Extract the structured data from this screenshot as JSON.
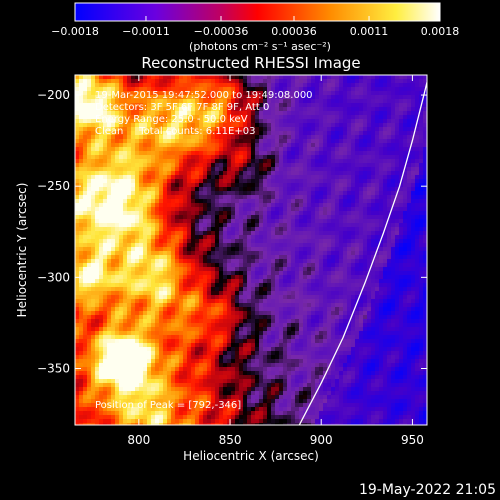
{
  "chart_data": {
    "type": "heatmap",
    "title": "Reconstructed RHESSI Image",
    "xlabel": "Heliocentric X (arcsec)",
    "ylabel": "Heliocentric Y (arcsec)",
    "xlim": [
      765,
      958
    ],
    "ylim": [
      -381,
      -189
    ],
    "x_ticks": [
      800,
      850,
      900,
      950
    ],
    "x_tick_labels": [
      "800",
      "850",
      "900",
      "950"
    ],
    "y_ticks": [
      -200,
      -250,
      -300,
      -350
    ],
    "y_tick_labels": [
      "−200",
      "−250",
      "−300",
      "−350"
    ],
    "colorbar": {
      "range": [
        -0.0018,
        0.0018
      ],
      "ticks": [
        -0.0018,
        -0.0011,
        -0.00036,
        0.00036,
        0.0011,
        0.0018
      ],
      "tick_labels": [
        "−0.0018",
        "−0.0011",
        "−0.00036",
        "0.00036",
        "0.0011",
        "0.0018"
      ],
      "units": "(photons cm⁻² s⁻¹ asec⁻²)",
      "colors": [
        "#0000ff",
        "#7a00d6",
        "#ff0000",
        "#ff8c00",
        "#ffff80",
        "#ffffff"
      ]
    },
    "annotations": [
      "19-Mar-2015 19:47:52.000 to 19:49:08.000",
      "Detectors: 3F 5F 6F 7F 8F 9F, Att 0",
      "Energy Range: 25.0 - 50.0 keV",
      "Clean     Total counts: 6.11E+03"
    ],
    "peak_label": "Position of Peak = [792,-346]",
    "peak": [
      792,
      -346
    ],
    "limb_curve": [
      [
        888,
        -381
      ],
      [
        900,
        -358
      ],
      [
        912,
        -333
      ],
      [
        924,
        -303
      ],
      [
        934,
        -276
      ],
      [
        943,
        -250
      ],
      [
        950,
        -225
      ],
      [
        956,
        -201
      ],
      [
        958,
        -193
      ]
    ],
    "grid": false,
    "timestamp": "19-May-2022 21:05"
  }
}
